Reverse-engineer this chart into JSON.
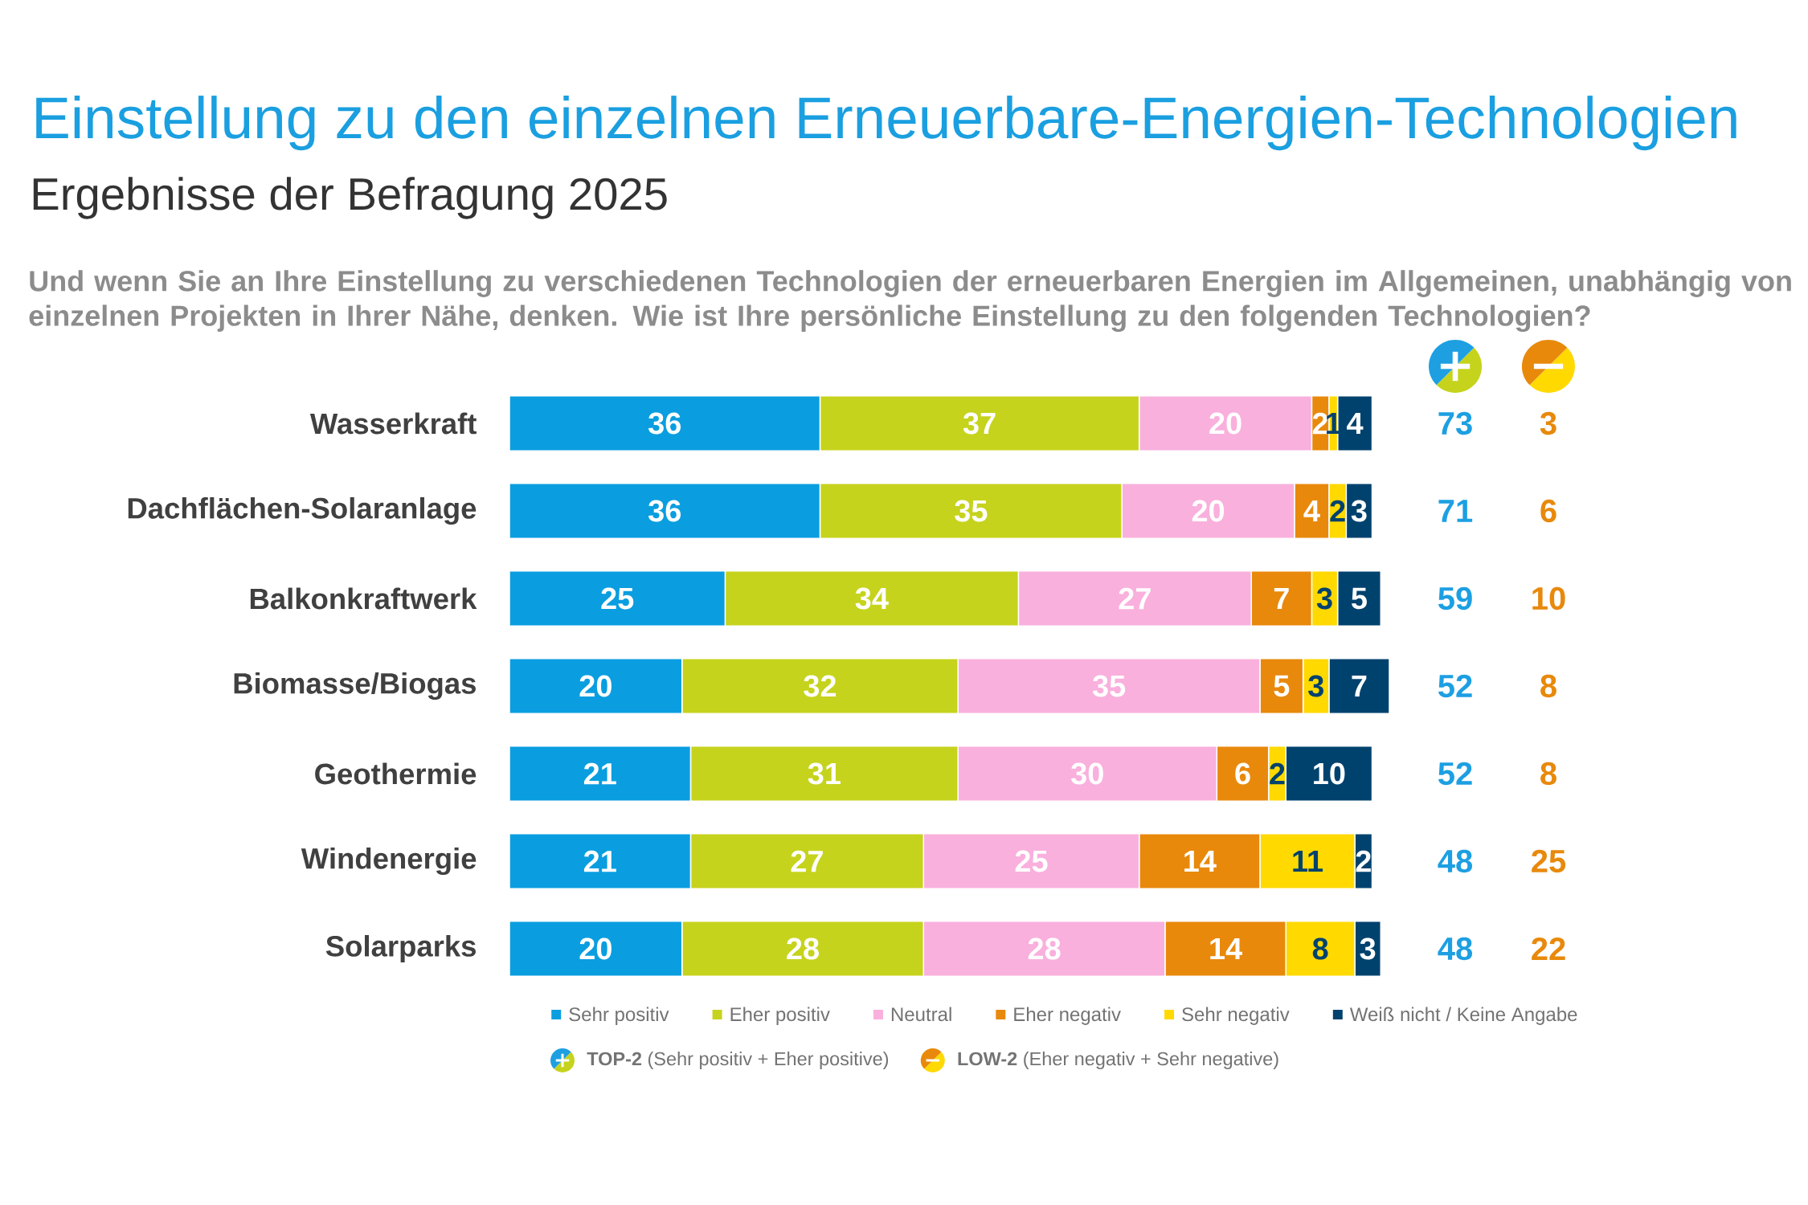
{
  "chart_data": {
    "type": "bar",
    "orientation": "horizontal",
    "stacked": true,
    "title": "Einstellung zu den einzelnen Erneuerbare-Energien-Technologien",
    "subtitle": "Ergebnisse der Befragung 2025",
    "annotations": [
      "Und wenn Sie an Ihre Einstellung zu verschiedenen Technologien der erneuerbaren Energien im Allgemeinen, unabhängig von einzelnen Projekten in Ihrer Nähe, denken. Wie ist Ihre persönliche Einstellung zu den folgenden Technologien?",
      "73",
      "3",
      "71",
      "6",
      "59",
      "10",
      "52",
      "8",
      "52",
      "8",
      "48",
      "25",
      "48",
      "22",
      "**TOP-2** (Sehr positiv + Eher positive)",
      "**LOW-2** (Eher negativ + Sehr negative)"
    ],
    "categories": [
      "Wasserkraft",
      "Dachflächen-Solaranlage",
      "Balkonkraftwerk",
      "Biomasse/Biogas",
      "Geothermie",
      "Windenergie",
      "Solarparks"
    ],
    "series": [
      {
        "name": "Sehr positiv",
        "color": "#0a9ee0",
        "values": [
          36,
          36,
          25,
          20,
          21,
          21,
          20
        ]
      },
      {
        "name": "Eher positiv",
        "color": "#c6d31d",
        "values": [
          37,
          35,
          34,
          32,
          31,
          27,
          28
        ]
      },
      {
        "name": "Neutral",
        "color": "#f9b0dd",
        "values": [
          20,
          20,
          27,
          35,
          30,
          25,
          28
        ]
      },
      {
        "name": "Eher negativ",
        "color": "#e8890c",
        "values": [
          2,
          4,
          7,
          5,
          6,
          14,
          14
        ]
      },
      {
        "name": "Sehr negativ",
        "color": "#ffd900",
        "values": [
          1,
          2,
          3,
          3,
          2,
          11,
          8
        ]
      },
      {
        "name": "Weiß nicht / Keine Angabe",
        "color": "#00426e",
        "values": [
          4,
          3,
          5,
          7,
          10,
          2,
          3
        ]
      }
    ],
    "data_labels": true,
    "legend": "bottom",
    "tick_labels": "y"
  }
}
